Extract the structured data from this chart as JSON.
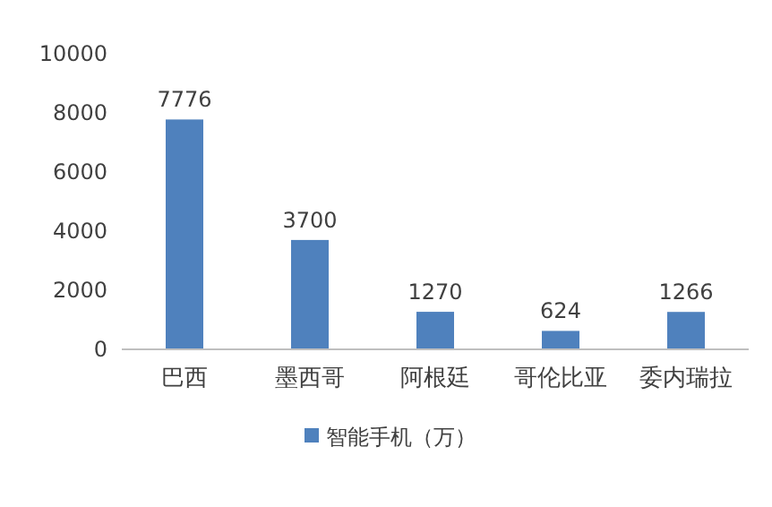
{
  "chart_data": {
    "type": "bar",
    "categories": [
      "巴西",
      "墨西哥",
      "阿根廷",
      "哥伦比亚",
      "委内瑞拉"
    ],
    "series": [
      {
        "name": "智能手机（万）",
        "color": "#4f81bd",
        "values": [
          7776,
          3700,
          1270,
          624,
          1266
        ]
      }
    ],
    "ylim": [
      0,
      10000
    ],
    "yticks": [
      0,
      2000,
      4000,
      6000,
      8000,
      10000
    ],
    "data_labels": true,
    "legend": "bottom"
  }
}
